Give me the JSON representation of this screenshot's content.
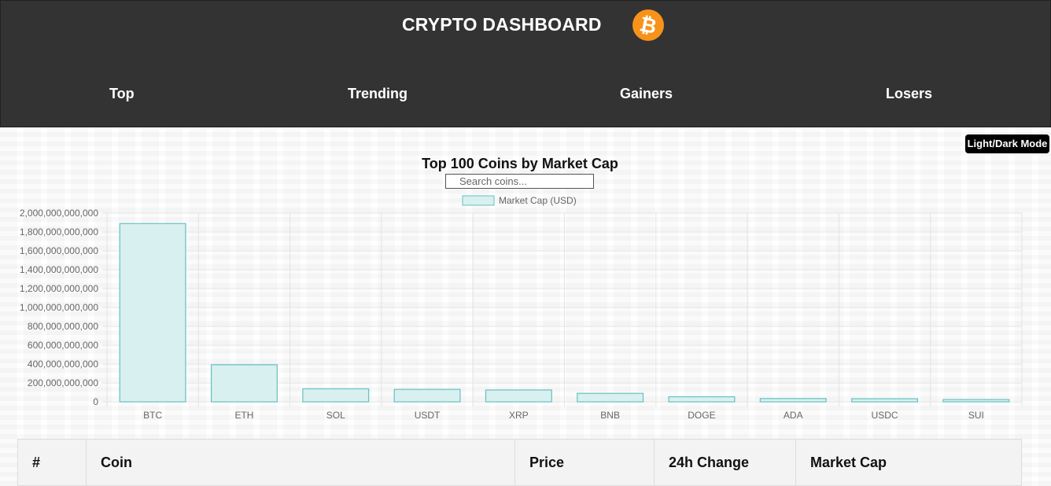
{
  "header": {
    "title": "CRYPTO DASHBOARD",
    "logo_icon": "bitcoin-icon",
    "logo_color": "#f7931a",
    "background": "#333333"
  },
  "nav": {
    "items": [
      {
        "label": "Top"
      },
      {
        "label": "Trending"
      },
      {
        "label": "Gainers"
      },
      {
        "label": "Losers"
      }
    ]
  },
  "theme_toggle": {
    "label": "Light/Dark Mode"
  },
  "search": {
    "placeholder": "Search coins...",
    "value": ""
  },
  "chart_data": {
    "type": "bar",
    "title": "Top 100 Coins by Market Cap",
    "categories": [
      "BTC",
      "ETH",
      "SOL",
      "USDT",
      "XRP",
      "BNB",
      "DOGE",
      "ADA",
      "USDC",
      "SUI"
    ],
    "series": [
      {
        "name": "Market Cap (USD)",
        "values": [
          1890000000000,
          393000000000,
          138000000000,
          132000000000,
          126000000000,
          90000000000,
          54000000000,
          35000000000,
          33000000000,
          24000000000
        ]
      }
    ],
    "ylim": [
      0,
      2000000000000
    ],
    "yticks": [
      "0",
      "200,000,000,000",
      "400,000,000,000",
      "600,000,000,000",
      "800,000,000,000",
      "1,000,000,000,000",
      "1,200,000,000,000",
      "1,400,000,000,000",
      "1,600,000,000,000",
      "1,800,000,000,000",
      "2,000,000,000,000"
    ],
    "grid": true,
    "legend": "top-center",
    "bar_fill": "#d8f0f0",
    "bar_stroke": "#66c0c0"
  },
  "table": {
    "columns": [
      "#",
      "Coin",
      "Price",
      "24h Change",
      "Market Cap"
    ]
  }
}
